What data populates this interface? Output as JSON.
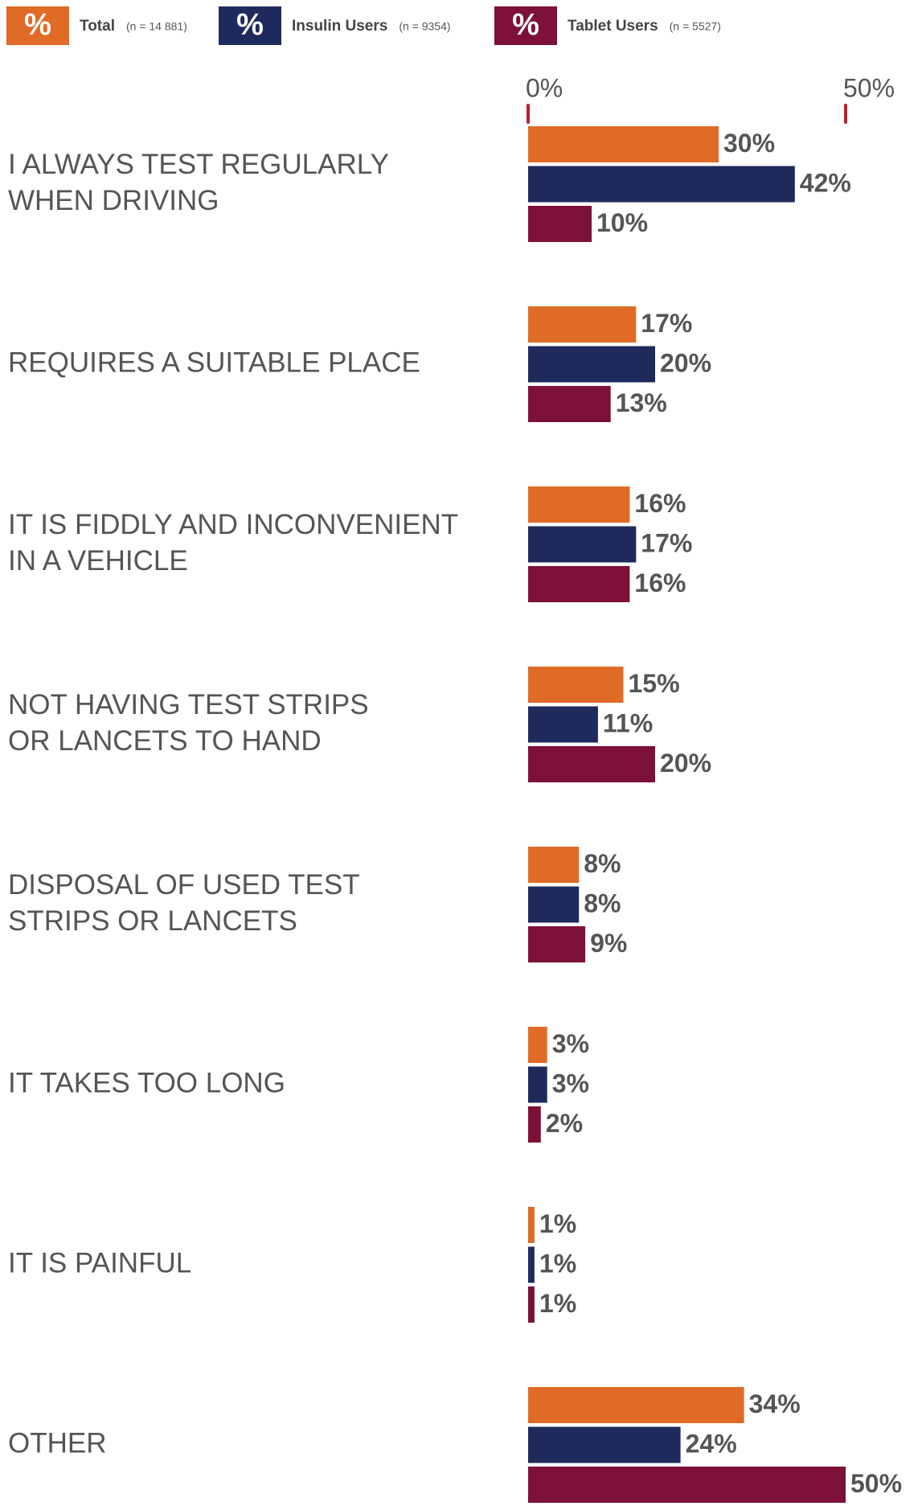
{
  "chart_data": {
    "type": "hbar",
    "legend_symbol": "%",
    "categories": [
      [
        "I ALWAYS TEST REGULARLY",
        "WHEN DRIVING"
      ],
      [
        "REQUIRES A SUITABLE PLACE"
      ],
      [
        "IT IS FIDDLY AND INCONVENIENT",
        "IN A VEHICLE"
      ],
      [
        "NOT HAVING TEST STRIPS",
        "OR LANCETS TO HAND"
      ],
      [
        "DISPOSAL OF USED TEST",
        "STRIPS OR LANCETS"
      ],
      [
        "IT TAKES TOO LONG"
      ],
      [
        "IT IS PAINFUL"
      ],
      [
        "OTHER"
      ]
    ],
    "series": [
      {
        "name": "Total",
        "note": "(n = 14 881)",
        "color": "#e06b26",
        "values": [
          30,
          17,
          16,
          15,
          8,
          3,
          1,
          34
        ],
        "value_labels": [
          "30%",
          "17%",
          "16%",
          "15%",
          "8%",
          "3%",
          "1%",
          "34%"
        ]
      },
      {
        "name": "Insulin Users",
        "note": "(n = 9354)",
        "color": "#1f2a5c",
        "values": [
          42,
          20,
          17,
          11,
          8,
          3,
          1,
          24
        ],
        "value_labels": [
          "42%",
          "20%",
          "17%",
          "11%",
          "8%",
          "3%",
          "1%",
          "24%"
        ]
      },
      {
        "name": "Tablet Users",
        "note": "(n = 5527)",
        "color": "#7d1038",
        "values": [
          10,
          13,
          16,
          20,
          9,
          2,
          1,
          50
        ],
        "value_labels": [
          "10%",
          "13%",
          "16%",
          "20%",
          "9%",
          "2%",
          "1%",
          "50%"
        ]
      }
    ],
    "xlim": [
      0,
      50
    ],
    "xticks": [
      {
        "value": 0,
        "label": "0%"
      },
      {
        "value": 50,
        "label": "50%"
      }
    ],
    "tick_color": "#b5202e"
  }
}
